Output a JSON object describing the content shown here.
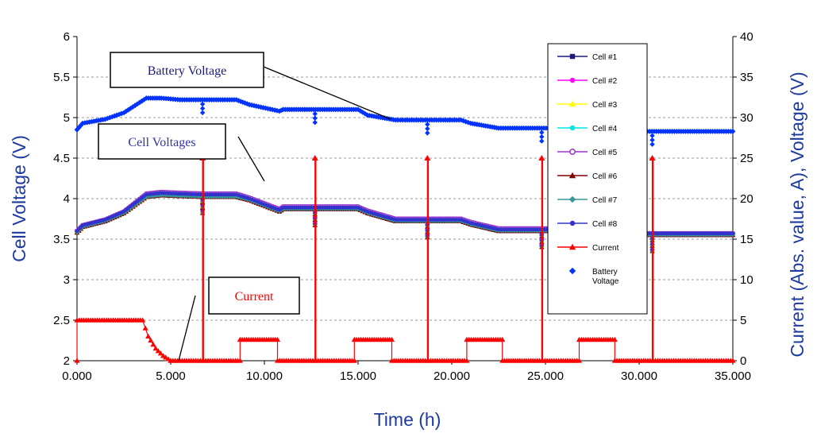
{
  "chart_data": {
    "type": "line",
    "xlabel": "Time (h)",
    "ylabel": "Cell Voltage (V)",
    "y2label": "Current (Abs. value, A), Voltage (V)",
    "x_ticks": [
      "0.000",
      "5.000",
      "10.000",
      "15.000",
      "20.000",
      "25.000",
      "30.000",
      "35.000"
    ],
    "y_ticks": [
      "2",
      "2.5",
      "3",
      "3.5",
      "4",
      "4.5",
      "5",
      "5.5",
      "6"
    ],
    "y2_ticks": [
      "0",
      "5",
      "10",
      "15",
      "20",
      "25",
      "30",
      "35",
      "40"
    ],
    "xlim": [
      0,
      35
    ],
    "ylim": [
      2,
      6
    ],
    "y2lim": [
      0,
      40
    ],
    "grid": "horizontal dashed",
    "legend_position": "right",
    "series": [
      {
        "name": "Cell #1",
        "axis": "left",
        "color": "#1a1a7a",
        "marker": "square",
        "x": [
          0,
          0.3,
          1.5,
          2.5,
          3.7,
          4.5,
          5.5,
          6.7,
          8.5,
          9.2,
          10.8,
          11,
          12.5,
          15,
          15.5,
          17,
          17.5,
          20.5,
          21,
          22.5,
          23,
          28.5,
          29,
          35
        ],
        "y": [
          3.58,
          3.65,
          3.72,
          3.82,
          4.02,
          4.04,
          4.03,
          4.02,
          4.02,
          3.98,
          3.84,
          3.87,
          3.87,
          3.87,
          3.82,
          3.72,
          3.72,
          3.72,
          3.68,
          3.6,
          3.6,
          3.6,
          3.55,
          3.55
        ]
      },
      {
        "name": "Cell #2",
        "axis": "left",
        "color": "#ff00ff",
        "marker": "circle",
        "x": [
          0,
          0.3,
          1.5,
          2.5,
          3.7,
          4.5,
          5.5,
          6.7,
          8.5,
          9.2,
          10.8,
          11,
          12.5,
          15,
          15.5,
          17,
          17.5,
          20.5,
          21,
          22.5,
          23,
          28.5,
          29,
          35
        ],
        "y": [
          3.6,
          3.67,
          3.74,
          3.84,
          4.05,
          4.07,
          4.06,
          4.05,
          4.05,
          4,
          3.86,
          3.89,
          3.89,
          3.89,
          3.84,
          3.74,
          3.74,
          3.74,
          3.7,
          3.62,
          3.62,
          3.62,
          3.57,
          3.57
        ]
      },
      {
        "name": "Cell #3",
        "axis": "left",
        "color": "#ffff00",
        "marker": "triangle",
        "x": [
          0,
          0.3,
          1.5,
          2.5,
          3.7,
          4.5,
          5.5,
          6.7,
          8.5,
          9.2,
          10.8,
          11,
          12.5,
          15,
          15.5,
          17,
          17.5,
          20.5,
          21,
          22.5,
          23,
          28.5,
          29,
          35
        ],
        "y": [
          3.59,
          3.66,
          3.73,
          3.83,
          4.03,
          4.05,
          4.04,
          4.03,
          4.03,
          3.99,
          3.85,
          3.88,
          3.88,
          3.88,
          3.83,
          3.73,
          3.73,
          3.73,
          3.69,
          3.61,
          3.61,
          3.61,
          3.56,
          3.56
        ]
      },
      {
        "name": "Cell #4",
        "axis": "left",
        "color": "#00e5e5",
        "marker": "circle",
        "x": [
          0,
          0.3,
          1.5,
          2.5,
          3.7,
          4.5,
          5.5,
          6.7,
          8.5,
          9.2,
          10.8,
          11,
          12.5,
          15,
          15.5,
          17,
          17.5,
          20.5,
          21,
          22.5,
          23,
          28.5,
          29,
          35
        ],
        "y": [
          3.59,
          3.66,
          3.73,
          3.83,
          4.03,
          4.05,
          4.04,
          4.03,
          4.03,
          3.99,
          3.85,
          3.88,
          3.88,
          3.88,
          3.83,
          3.73,
          3.73,
          3.73,
          3.69,
          3.61,
          3.61,
          3.61,
          3.56,
          3.56
        ]
      },
      {
        "name": "Cell #5",
        "axis": "left",
        "color": "#9933cc",
        "marker": "circle-open",
        "x": [
          0,
          0.3,
          1.5,
          2.5,
          3.7,
          4.5,
          5.5,
          6.7,
          8.5,
          9.2,
          10.8,
          11,
          12.5,
          15,
          15.5,
          17,
          17.5,
          20.5,
          21,
          22.5,
          23,
          28.5,
          29,
          35
        ],
        "y": [
          3.6,
          3.67,
          3.74,
          3.84,
          4.06,
          4.08,
          4.07,
          4.06,
          4.06,
          4.01,
          3.87,
          3.9,
          3.9,
          3.9,
          3.85,
          3.75,
          3.75,
          3.75,
          3.71,
          3.63,
          3.63,
          3.63,
          3.57,
          3.57
        ]
      },
      {
        "name": "Cell #6",
        "axis": "left",
        "color": "#800000",
        "marker": "triangle",
        "x": [
          0,
          0.3,
          1.5,
          2.5,
          3.7,
          4.5,
          5.5,
          6.7,
          8.5,
          9.2,
          10.8,
          11,
          12.5,
          15,
          15.5,
          17,
          17.5,
          20.5,
          21,
          22.5,
          23,
          28.5,
          29,
          35
        ],
        "y": [
          3.58,
          3.65,
          3.72,
          3.82,
          4.02,
          4.04,
          4.03,
          4.02,
          4.02,
          3.98,
          3.84,
          3.87,
          3.87,
          3.87,
          3.82,
          3.72,
          3.72,
          3.72,
          3.68,
          3.6,
          3.6,
          3.6,
          3.55,
          3.55
        ]
      },
      {
        "name": "Cell #7",
        "axis": "left",
        "color": "#339999",
        "marker": "diamond",
        "x": [
          0,
          0.3,
          1.5,
          2.5,
          3.7,
          4.5,
          5.5,
          6.7,
          8.5,
          9.2,
          10.8,
          11,
          12.5,
          15,
          15.5,
          17,
          17.5,
          20.5,
          21,
          22.5,
          23,
          28.5,
          29,
          35
        ],
        "y": [
          3.59,
          3.66,
          3.73,
          3.83,
          4.03,
          4.05,
          4.04,
          4.03,
          4.03,
          3.99,
          3.85,
          3.88,
          3.88,
          3.88,
          3.83,
          3.73,
          3.73,
          3.73,
          3.69,
          3.61,
          3.61,
          3.61,
          3.56,
          3.56
        ]
      },
      {
        "name": "Cell #8",
        "axis": "left",
        "color": "#3333cc",
        "marker": "circle",
        "x": [
          0,
          0.3,
          1.5,
          2.5,
          3.7,
          4.5,
          5.5,
          6.7,
          8.5,
          9.2,
          10.8,
          11,
          12.5,
          15,
          15.5,
          17,
          17.5,
          20.5,
          21,
          22.5,
          23,
          28.5,
          29,
          35
        ],
        "y": [
          3.6,
          3.67,
          3.74,
          3.84,
          4.05,
          4.07,
          4.06,
          4.05,
          4.05,
          4,
          3.86,
          3.89,
          3.89,
          3.89,
          3.84,
          3.74,
          3.74,
          3.74,
          3.7,
          3.62,
          3.62,
          3.62,
          3.57,
          3.57
        ]
      },
      {
        "name": "Current",
        "axis": "right",
        "color": "#ff0000",
        "marker": "triangle",
        "x": [
          0,
          0,
          3.5,
          3.8,
          4.2,
          4.6,
          5,
          5,
          6.7,
          6.7,
          6.75,
          6.75,
          8.7,
          8.7,
          10.7,
          10.7,
          12.7,
          12.7,
          12.75,
          12.75,
          14.8,
          14.8,
          16.8,
          16.8,
          18.7,
          18.7,
          18.75,
          18.75,
          20.8,
          20.8,
          22.7,
          22.7,
          24.8,
          24.8,
          24.85,
          24.85,
          26.8,
          26.8,
          28.7,
          28.7,
          30.7,
          30.7,
          30.75,
          30.75,
          35
        ],
        "y": [
          0,
          5,
          5,
          3,
          1.5,
          0.6,
          0,
          0,
          0,
          25,
          25,
          0,
          0,
          2.6,
          2.6,
          0,
          0,
          25,
          25,
          0,
          0,
          2.6,
          2.6,
          0,
          0,
          25,
          25,
          0,
          0,
          2.6,
          2.6,
          0,
          0,
          25,
          25,
          0,
          0,
          2.6,
          2.6,
          0,
          0,
          25,
          25,
          0,
          0
        ]
      },
      {
        "name": "Battery Voltage",
        "axis": "right",
        "color": "#0033ff",
        "marker": "diamond",
        "x": [
          0,
          0.3,
          1.5,
          2.5,
          3.7,
          4.5,
          5.5,
          6.7,
          8.5,
          9.2,
          10.8,
          11,
          12.5,
          15,
          15.5,
          17,
          17.5,
          20.5,
          21,
          22.5,
          23,
          28.5,
          29,
          35
        ],
        "y": [
          28.5,
          29.3,
          29.8,
          30.6,
          32.4,
          32.4,
          32.2,
          32.2,
          32.2,
          31.6,
          30.8,
          31,
          31,
          31,
          30.3,
          29.7,
          29.7,
          29.7,
          29.3,
          28.7,
          28.7,
          28.7,
          28.3,
          28.3
        ]
      }
    ],
    "callouts": [
      {
        "text": "Battery Voltage",
        "color": "#1a1a7a"
      },
      {
        "text": "Cell Voltages",
        "color": "#3333aa"
      },
      {
        "text": "Current",
        "color": "#ff0000"
      }
    ]
  }
}
